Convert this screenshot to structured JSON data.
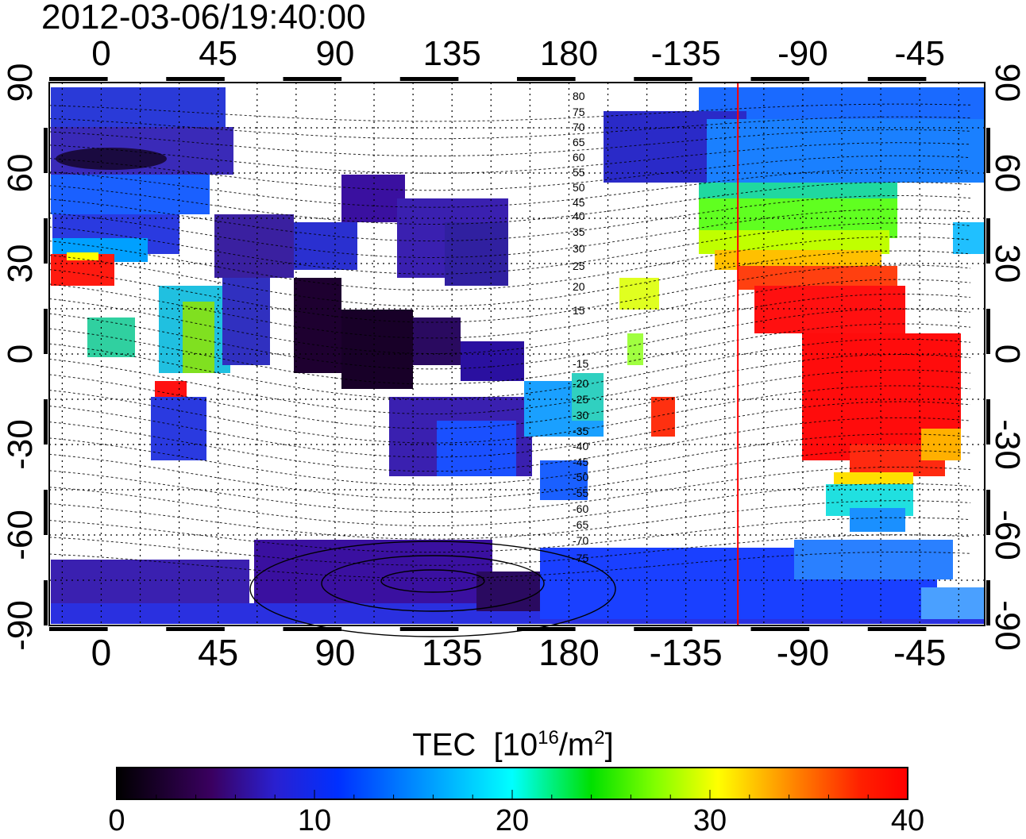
{
  "title": "2012-03-06/19:40:00",
  "longitude_ticks": [
    "0",
    "45",
    "90",
    "135",
    "180",
    "-135",
    "-90",
    "-45"
  ],
  "latitude_ticks": [
    "90",
    "60",
    "30",
    "0",
    "-30",
    "-60",
    "-90"
  ],
  "contour_labels": [
    "80",
    "75",
    "70",
    "65",
    "60",
    "55",
    "50",
    "45",
    "40",
    "35",
    "30",
    "25",
    "20",
    "15",
    "-15",
    "-20",
    "-25",
    "-30",
    "-35",
    "-40",
    "-45",
    "-50",
    "-55",
    "-60",
    "-65",
    "-70",
    "-75"
  ],
  "colorbar": {
    "title": "TEC",
    "unit_prefix": "[10",
    "unit_exp1": "16",
    "unit_mid": "/m",
    "unit_exp2": "2",
    "unit_suffix": "]",
    "ticks": [
      "0",
      "10",
      "20",
      "30",
      "40"
    ],
    "range": [
      0,
      40
    ],
    "colors": [
      "#000000",
      "#3a0060",
      "#2a20d0",
      "#0030ff",
      "#00a0ff",
      "#00ffff",
      "#00e000",
      "#80ff00",
      "#ffff00",
      "#ff8000",
      "#ff2000",
      "#ff0000"
    ]
  },
  "terminator_color": "#ff0000",
  "map_extent": {
    "lon": [
      -20,
      340
    ],
    "lat": [
      -90,
      90
    ]
  },
  "sunrise_meridian_lon": 245
}
